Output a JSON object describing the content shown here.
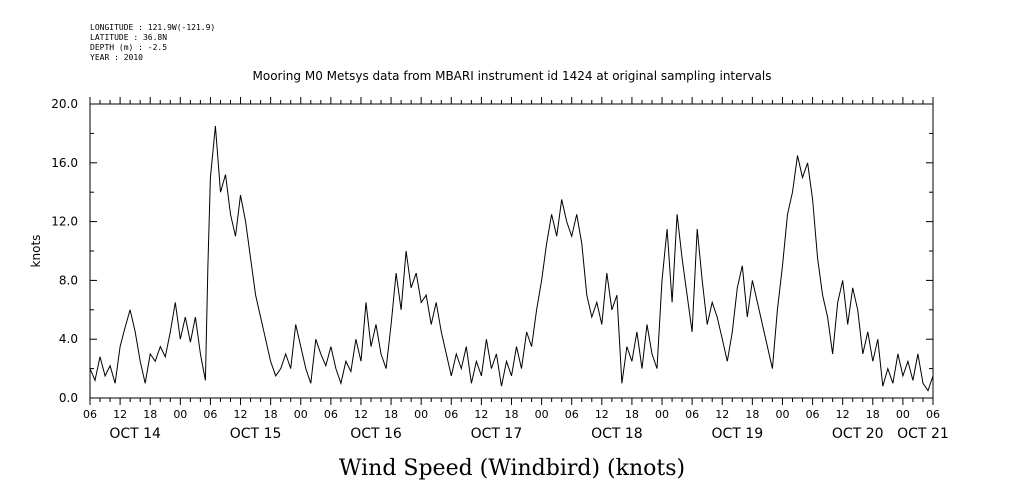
{
  "header": {
    "longitude": "LONGITUDE : 121.9W(-121.9)",
    "latitude": "LATITUDE : 36.8N",
    "depth": "DEPTH (m) : -2.5",
    "year": "YEAR : 2010"
  },
  "chart_data": {
    "type": "line",
    "title": "Mooring M0 Metsys data from MBARI instrument id 1424 at original sampling intervals",
    "xlabel": "Wind Speed (Windbird) (knots)",
    "ylabel": "knots",
    "ylim": [
      0,
      20
    ],
    "yticks": [
      "0.0",
      "4.0",
      "8.0",
      "12.0",
      "16.0",
      "20.0"
    ],
    "xlim_hours": [
      0,
      168
    ],
    "hour_ticks": [
      "06",
      "12",
      "18",
      "00",
      "06",
      "12",
      "18",
      "00",
      "06",
      "12",
      "18",
      "00",
      "06",
      "12",
      "18",
      "00",
      "06",
      "12",
      "18",
      "00",
      "06",
      "12",
      "18",
      "00",
      "06",
      "12",
      "18",
      "00",
      "06"
    ],
    "day_labels": [
      "OCT 14",
      "OCT 15",
      "OCT 16",
      "OCT 17",
      "OCT 18",
      "OCT 19",
      "OCT 20",
      "OCT 21"
    ],
    "grid": false,
    "series": [
      {
        "values": [
          [
            0,
            2.0
          ],
          [
            1,
            1.2
          ],
          [
            2,
            2.8
          ],
          [
            3,
            1.5
          ],
          [
            4,
            2.2
          ],
          [
            5,
            1.0
          ],
          [
            6,
            3.5
          ],
          [
            7,
            4.8
          ],
          [
            8,
            6.0
          ],
          [
            9,
            4.5
          ],
          [
            10,
            2.5
          ],
          [
            11,
            1.0
          ],
          [
            12,
            3.0
          ],
          [
            13,
            2.5
          ],
          [
            14,
            3.5
          ],
          [
            15,
            2.8
          ],
          [
            16,
            4.5
          ],
          [
            17,
            6.5
          ],
          [
            18,
            4.0
          ],
          [
            19,
            5.5
          ],
          [
            20,
            3.8
          ],
          [
            21,
            5.5
          ],
          [
            22,
            3.0
          ],
          [
            23,
            1.2
          ],
          [
            23.5,
            9.0
          ],
          [
            24,
            15.0
          ],
          [
            25,
            18.5
          ],
          [
            26,
            14.0
          ],
          [
            27,
            15.2
          ],
          [
            28,
            12.5
          ],
          [
            29,
            11.0
          ],
          [
            30,
            13.8
          ],
          [
            31,
            12.0
          ],
          [
            32,
            9.5
          ],
          [
            33,
            7.0
          ],
          [
            34,
            5.5
          ],
          [
            35,
            4.0
          ],
          [
            36,
            2.5
          ],
          [
            37,
            1.5
          ],
          [
            38,
            2.0
          ],
          [
            39,
            3.0
          ],
          [
            40,
            2.0
          ],
          [
            41,
            5.0
          ],
          [
            42,
            3.5
          ],
          [
            43,
            2.0
          ],
          [
            44,
            1.0
          ],
          [
            45,
            4.0
          ],
          [
            46,
            3.0
          ],
          [
            47,
            2.2
          ],
          [
            48,
            3.5
          ],
          [
            49,
            2.0
          ],
          [
            50,
            1.0
          ],
          [
            51,
            2.5
          ],
          [
            52,
            1.8
          ],
          [
            53,
            4.0
          ],
          [
            54,
            2.5
          ],
          [
            55,
            6.5
          ],
          [
            56,
            3.5
          ],
          [
            57,
            5.0
          ],
          [
            58,
            3.0
          ],
          [
            59,
            2.0
          ],
          [
            60,
            5.0
          ],
          [
            61,
            8.5
          ],
          [
            62,
            6.0
          ],
          [
            63,
            10.0
          ],
          [
            64,
            7.5
          ],
          [
            65,
            8.5
          ],
          [
            66,
            6.5
          ],
          [
            67,
            7.0
          ],
          [
            68,
            5.0
          ],
          [
            69,
            6.5
          ],
          [
            70,
            4.5
          ],
          [
            71,
            3.0
          ],
          [
            72,
            1.5
          ],
          [
            73,
            3.0
          ],
          [
            74,
            2.0
          ],
          [
            75,
            3.5
          ],
          [
            76,
            1.0
          ],
          [
            77,
            2.5
          ],
          [
            78,
            1.5
          ],
          [
            79,
            4.0
          ],
          [
            80,
            2.0
          ],
          [
            81,
            3.0
          ],
          [
            82,
            0.8
          ],
          [
            83,
            2.5
          ],
          [
            84,
            1.5
          ],
          [
            85,
            3.5
          ],
          [
            86,
            2.0
          ],
          [
            87,
            4.5
          ],
          [
            88,
            3.5
          ],
          [
            89,
            6.0
          ],
          [
            90,
            8.0
          ],
          [
            91,
            10.5
          ],
          [
            92,
            12.5
          ],
          [
            93,
            11.0
          ],
          [
            94,
            13.5
          ],
          [
            95,
            12.0
          ],
          [
            96,
            11.0
          ],
          [
            97,
            12.5
          ],
          [
            98,
            10.5
          ],
          [
            99,
            7.0
          ],
          [
            100,
            5.5
          ],
          [
            101,
            6.5
          ],
          [
            102,
            5.0
          ],
          [
            103,
            8.5
          ],
          [
            104,
            6.0
          ],
          [
            105,
            7.0
          ],
          [
            106,
            1.0
          ],
          [
            107,
            3.5
          ],
          [
            108,
            2.5
          ],
          [
            109,
            4.5
          ],
          [
            110,
            2.0
          ],
          [
            111,
            5.0
          ],
          [
            112,
            3.0
          ],
          [
            113,
            2.0
          ],
          [
            114,
            8.0
          ],
          [
            115,
            11.5
          ],
          [
            116,
            6.5
          ],
          [
            117,
            12.5
          ],
          [
            118,
            9.5
          ],
          [
            119,
            7.0
          ],
          [
            120,
            4.5
          ],
          [
            121,
            11.5
          ],
          [
            122,
            8.0
          ],
          [
            123,
            5.0
          ],
          [
            124,
            6.5
          ],
          [
            125,
            5.5
          ],
          [
            126,
            4.0
          ],
          [
            127,
            2.5
          ],
          [
            128,
            4.5
          ],
          [
            129,
            7.5
          ],
          [
            130,
            9.0
          ],
          [
            131,
            5.5
          ],
          [
            132,
            8.0
          ],
          [
            133,
            6.5
          ],
          [
            134,
            5.0
          ],
          [
            135,
            3.5
          ],
          [
            136,
            2.0
          ],
          [
            137,
            6.0
          ],
          [
            138,
            9.0
          ],
          [
            139,
            12.5
          ],
          [
            140,
            14.0
          ],
          [
            141,
            16.5
          ],
          [
            142,
            15.0
          ],
          [
            143,
            16.0
          ],
          [
            144,
            13.5
          ],
          [
            145,
            9.5
          ],
          [
            146,
            7.0
          ],
          [
            147,
            5.5
          ],
          [
            148,
            3.0
          ],
          [
            149,
            6.5
          ],
          [
            150,
            8.0
          ],
          [
            151,
            5.0
          ],
          [
            152,
            7.5
          ],
          [
            153,
            6.0
          ],
          [
            154,
            3.0
          ],
          [
            155,
            4.5
          ],
          [
            156,
            2.5
          ],
          [
            157,
            4.0
          ],
          [
            158,
            0.8
          ],
          [
            159,
            2.0
          ],
          [
            160,
            1.0
          ],
          [
            161,
            3.0
          ],
          [
            162,
            1.5
          ],
          [
            163,
            2.5
          ],
          [
            164,
            1.2
          ],
          [
            165,
            3.0
          ],
          [
            166,
            1.0
          ],
          [
            167,
            0.5
          ],
          [
            168,
            1.5
          ]
        ]
      }
    ]
  }
}
